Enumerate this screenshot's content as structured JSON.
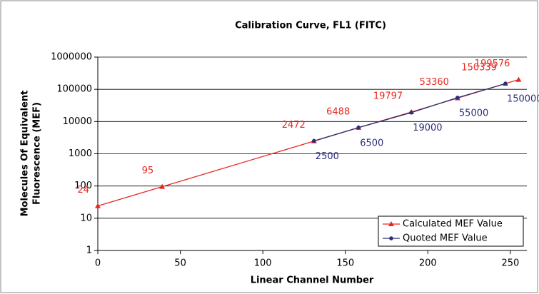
{
  "chart_data": {
    "type": "line",
    "title": "Calibration Curve, FL1 (FITC)",
    "xlabel": "Linear Channel Number",
    "ylabel": [
      "Molecules Of Equivalent",
      "Fluorescence (MEF)"
    ],
    "log_y": true,
    "grid": true,
    "legend": "lower right",
    "xlim": [
      0,
      260
    ],
    "xticks": [
      0,
      50,
      100,
      150,
      200,
      250
    ],
    "ylim": [
      1,
      1000000
    ],
    "yticks": [
      1,
      10,
      100,
      1000,
      10000,
      100000,
      1000000
    ],
    "series": [
      {
        "name": "Calculated MEF Value",
        "color": "#e8261f",
        "marker": "triangle",
        "x": [
          0,
          39,
          131,
          158,
          190,
          218,
          247,
          255
        ],
        "values": [
          24,
          95,
          2472,
          6488,
          19797,
          53360,
          150339,
          199576
        ]
      },
      {
        "name": "Quoted MEF Value",
        "color": "#2b2f7a",
        "marker": "circle",
        "x": [
          131,
          158,
          190,
          218,
          247
        ],
        "values": [
          2500,
          6500,
          19000,
          55000,
          150000
        ]
      }
    ]
  }
}
